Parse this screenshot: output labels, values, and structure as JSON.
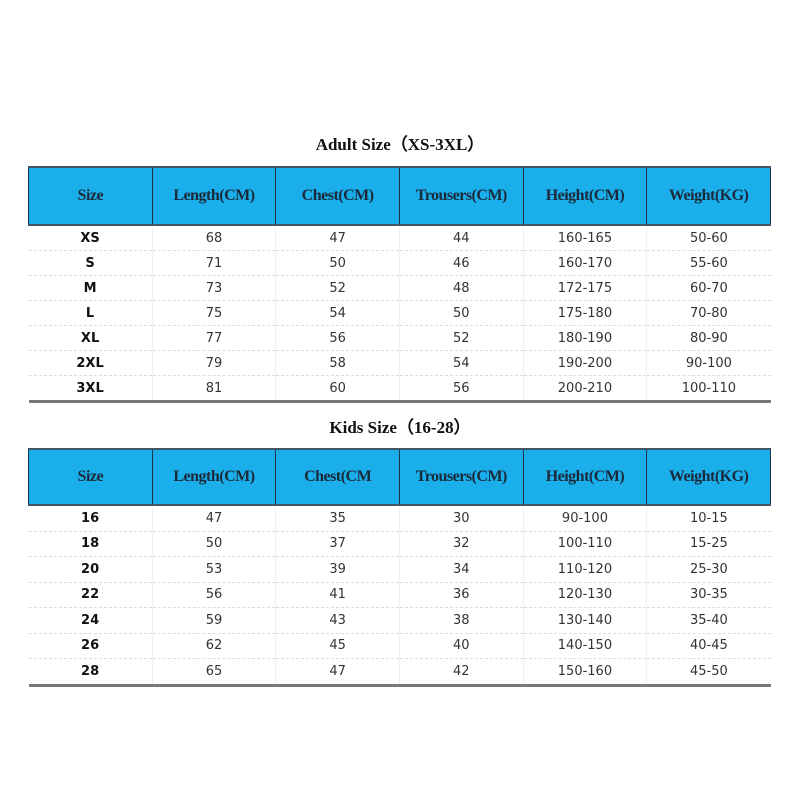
{
  "adult": {
    "title": "Adult Size（XS-3XL）",
    "headers": [
      "Size",
      "Length(CM)",
      "Chest(CM)",
      "Trousers(CM)",
      "Height(CM)",
      "Weight(KG)"
    ],
    "rows": [
      [
        "XS",
        "68",
        "47",
        "44",
        "160-165",
        "50-60"
      ],
      [
        "S",
        "71",
        "50",
        "46",
        "160-170",
        "55-60"
      ],
      [
        "M",
        "73",
        "52",
        "48",
        "172-175",
        "60-70"
      ],
      [
        "L",
        "75",
        "54",
        "50",
        "175-180",
        "70-80"
      ],
      [
        "XL",
        "77",
        "56",
        "52",
        "180-190",
        "80-90"
      ],
      [
        "2XL",
        "79",
        "58",
        "54",
        "190-200",
        "90-100"
      ],
      [
        "3XL",
        "81",
        "60",
        "56",
        "200-210",
        "100-110"
      ]
    ]
  },
  "kids": {
    "title": "Kids Size（16-28）",
    "headers": [
      "Size",
      "Length(CM)",
      "Chest(CM",
      "Trousers(CM)",
      "Height(CM)",
      "Weight(KG)"
    ],
    "rows": [
      [
        "16",
        "47",
        "35",
        "30",
        "90-100",
        "10-15"
      ],
      [
        "18",
        "50",
        "37",
        "32",
        "100-110",
        "15-25"
      ],
      [
        "20",
        "53",
        "39",
        "34",
        "110-120",
        "25-30"
      ],
      [
        "22",
        "56",
        "41",
        "36",
        "120-130",
        "30-35"
      ],
      [
        "24",
        "59",
        "43",
        "38",
        "130-140",
        "35-40"
      ],
      [
        "26",
        "62",
        "45",
        "40",
        "140-150",
        "40-45"
      ],
      [
        "28",
        "65",
        "47",
        "42",
        "150-160",
        "45-50"
      ]
    ]
  },
  "colors": {
    "header_bg": "#1aaeea"
  }
}
